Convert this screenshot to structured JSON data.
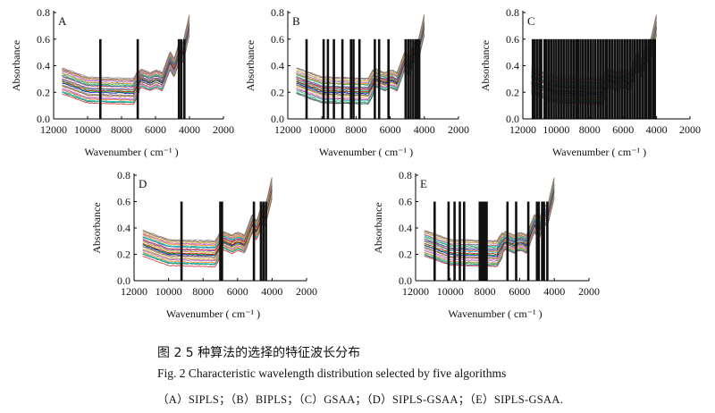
{
  "chart_data": [
    {
      "type": "line",
      "panel_label": "A",
      "xlabel": "Wavenumber ( cm⁻¹ )",
      "ylabel": "Absorbance",
      "xlim": [
        12000,
        2000
      ],
      "ylim": [
        0,
        0.8
      ],
      "xticks": [
        "12000",
        "10000",
        "8000",
        "6000",
        "4000",
        "2000"
      ],
      "yticks": [
        "0.0",
        "0.2",
        "0.4",
        "0.6",
        "0.8"
      ],
      "selected_wavenumbers": [
        9250,
        7050,
        4620,
        4480,
        4300
      ]
    },
    {
      "type": "line",
      "panel_label": "B",
      "xlabel": "Wavenumber ( cm⁻¹ )",
      "ylabel": "Absorbance",
      "xlim": [
        12000,
        2000
      ],
      "ylim": [
        0,
        0.8
      ],
      "xticks": [
        "12000",
        "10000",
        "8000",
        "6000",
        "4000",
        "2000"
      ],
      "yticks": [
        "0.0",
        "0.2",
        "0.4",
        "0.6",
        "0.8"
      ],
      "selected_wavenumbers": [
        10900,
        9900,
        9650,
        9300,
        8800,
        8300,
        8150,
        7800,
        6900,
        6650,
        6100,
        5100,
        4950,
        4800,
        4650,
        4500,
        4400,
        4300
      ]
    },
    {
      "type": "line",
      "panel_label": "C",
      "xlabel": "Wavenumber ( cm⁻¹ )",
      "ylabel": "Absorbance",
      "xlim": [
        12000,
        2000
      ],
      "ylim": [
        0,
        0.8
      ],
      "xticks": [
        "12000",
        "10000",
        "8000",
        "6000",
        "4000",
        "2000"
      ],
      "yticks": [
        "0.0",
        "0.2",
        "0.4",
        "0.6",
        "0.8"
      ],
      "selected_wavenumbers": [
        11400,
        11300,
        11150,
        11000,
        10900,
        10700,
        10600,
        10450,
        10300,
        10150,
        10000,
        9850,
        9700,
        9550,
        9400,
        9250,
        9100,
        8950,
        8800,
        8700,
        8550,
        8400,
        8250,
        8100,
        7950,
        7800,
        7650,
        7500,
        7350,
        7200,
        7050,
        6950,
        6800,
        6650,
        6500,
        6350,
        6200,
        6050,
        5900,
        5750,
        5600,
        5450,
        5300,
        5150,
        5000,
        4850,
        4700,
        4600,
        4450,
        4350,
        4200,
        4100
      ]
    },
    {
      "type": "line",
      "panel_label": "D",
      "xlabel": "Wavenumber ( cm⁻¹ )",
      "ylabel": "Absorbance",
      "xlim": [
        12000,
        2000
      ],
      "ylim": [
        0,
        0.8
      ],
      "xticks": [
        "12000",
        "10000",
        "8000",
        "6000",
        "4000",
        "2000"
      ],
      "yticks": [
        "0.0",
        "0.2",
        "0.4",
        "0.6",
        "0.8"
      ],
      "selected_wavenumbers": [
        9250,
        7000,
        6900,
        5050,
        4650,
        4500,
        4350
      ]
    },
    {
      "type": "line",
      "panel_label": "E",
      "xlabel": "Wavenumber ( cm⁻¹ )",
      "ylabel": "Absorbance",
      "xlim": [
        12000,
        2000
      ],
      "ylim": [
        0,
        0.8
      ],
      "xticks": [
        "12000",
        "10000",
        "8000",
        "6000",
        "4000",
        "2000"
      ],
      "yticks": [
        "0.0",
        "0.2",
        "0.4",
        "0.6",
        "0.8"
      ],
      "selected_wavenumbers": [
        10900,
        10100,
        9750,
        9450,
        9200,
        8300,
        8200,
        8100,
        8000,
        7900,
        6700,
        6200,
        5500,
        5000,
        4900,
        4700,
        4600,
        4400
      ]
    }
  ],
  "caption": {
    "cn": "图 2   5 种算法的选择的特征波长分布",
    "en": "Fig. 2    Characteristic wavelength distribution selected by five algorithms",
    "abbr": "（A）SIPLS；（B）BIPLS；（C）GSAA；（D）SIPLS-GSAA；（E）SIPLS-GSAA."
  },
  "colors": {
    "spectra": [
      "#d62728",
      "#1f77b4",
      "#2ca02c",
      "#17becf",
      "#ff7f0e",
      "#9467bd",
      "#e377c2",
      "#bcbd22",
      "#8c564b",
      "#7f7f7f",
      "#0000cc",
      "#00aa00",
      "#cc0000",
      "#00bcd4",
      "#ff9800",
      "#673ab7"
    ],
    "selection_bar": "#111111",
    "axis": "#000000"
  }
}
